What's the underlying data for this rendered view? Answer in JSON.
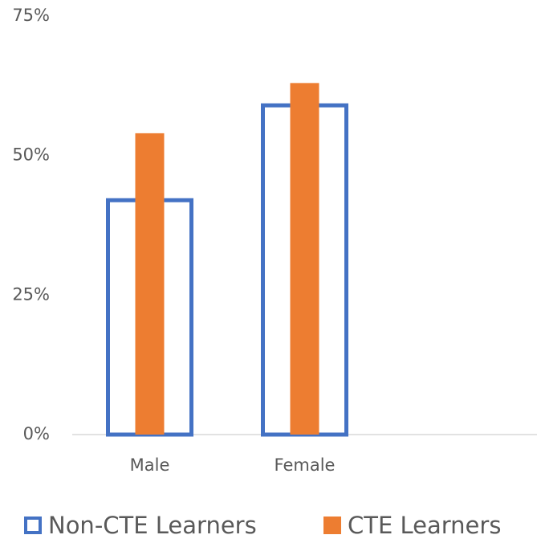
{
  "chart_data": {
    "type": "bar",
    "categories": [
      "Male",
      "Female",
      null
    ],
    "series": [
      {
        "name": "Non-CTE Learners",
        "color": "#4472c4",
        "style": "outline",
        "values": [
          42,
          59,
          null
        ]
      },
      {
        "name": "CTE Learners",
        "color": "#ed7d31",
        "style": "filled",
        "values": [
          54,
          63,
          null
        ]
      }
    ],
    "ylim": [
      0,
      75
    ],
    "yticks": [
      {
        "value": 0,
        "label": "0%"
      },
      {
        "value": 25,
        "label": "25%"
      },
      {
        "value": 50,
        "label": "50%"
      },
      {
        "value": 75,
        "label": "75%"
      }
    ],
    "grid": false,
    "legend": "bottom"
  }
}
